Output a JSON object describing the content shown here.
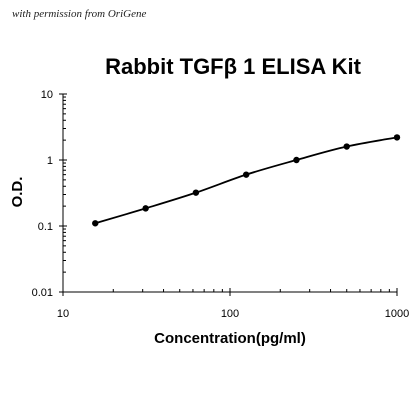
{
  "watermark": "with permission from OriGene",
  "chart_data": {
    "type": "line",
    "title": "Rabbit TGFβ 1 ELISA Kit",
    "xlabel": "Concentration(pg/ml)",
    "ylabel": "O.D.",
    "xscale": "log",
    "yscale": "log",
    "xlim": [
      10,
      1000
    ],
    "ylim": [
      0.01,
      10
    ],
    "xticks": [
      10,
      100,
      1000
    ],
    "xtick_labels": [
      "10",
      "100",
      "1000"
    ],
    "yticks": [
      0.01,
      0.1,
      1,
      10
    ],
    "ytick_labels": [
      "0.01",
      "0.1",
      "1",
      "10"
    ],
    "grid": false,
    "series": [
      {
        "x": [
          15.6,
          31.25,
          62.5,
          125,
          250,
          500,
          1000
        ],
        "y": [
          0.11,
          0.185,
          0.32,
          0.6,
          1.0,
          1.6,
          2.2
        ]
      }
    ],
    "colors": {
      "line": "#000000",
      "marker": "#000000",
      "axis": "#000000"
    }
  }
}
